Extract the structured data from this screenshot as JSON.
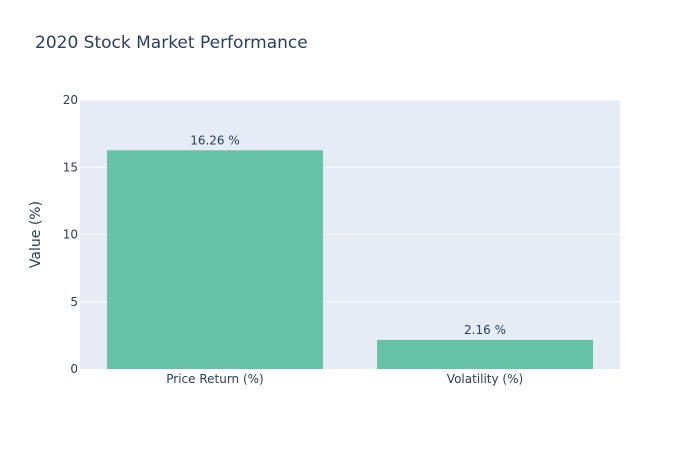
{
  "chart_data": {
    "type": "bar",
    "title": "2020 Stock Market Performance",
    "xlabel": "",
    "ylabel": "Value (%)",
    "categories": [
      "Price Return (%)",
      "Volatility (%)"
    ],
    "values": [
      16.26,
      2.16
    ],
    "data_labels": [
      "16.26 %",
      "2.16 %"
    ],
    "ylim": [
      0,
      20
    ],
    "yticks": [
      0,
      5,
      10,
      15,
      20
    ],
    "ytick_labels": [
      "0",
      "5",
      "10",
      "15",
      "20"
    ],
    "grid": true,
    "legend": "none",
    "bar_color": "#66c2a5",
    "plot_background": "#e5ecf6",
    "gridline_color": "#ffffff",
    "text_color": "#2a3f5f"
  }
}
